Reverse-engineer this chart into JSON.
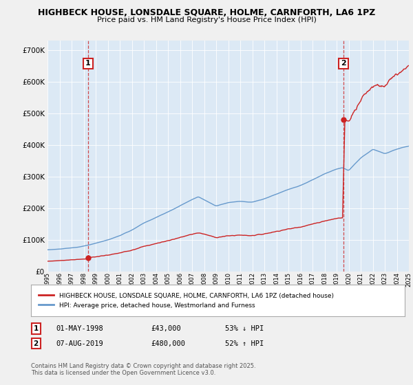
{
  "title": "HIGHBECK HOUSE, LONSDALE SQUARE, HOLME, CARNFORTH, LA6 1PZ",
  "subtitle": "Price paid vs. HM Land Registry's House Price Index (HPI)",
  "bg_color": "#f0f0f0",
  "plot_bg_color": "#dce9f5",
  "hpi_color": "#6699cc",
  "price_color": "#cc2222",
  "grid_color": "#ffffff",
  "sale1_year": 1998.37,
  "sale1_price": 43000,
  "sale2_year": 2019.58,
  "sale2_price": 480000,
  "x_start_year": 1995,
  "x_end_year": 2025,
  "y_max": 730000,
  "legend_line1": "HIGHBECK HOUSE, LONSDALE SQUARE, HOLME, CARNFORTH, LA6 1PZ (detached house)",
  "legend_line2": "HPI: Average price, detached house, Westmorland and Furness",
  "note1_num": "1",
  "note1_date": "01-MAY-1998",
  "note1_price": "£43,000",
  "note1_hpi": "53% ↓ HPI",
  "note2_num": "2",
  "note2_date": "07-AUG-2019",
  "note2_price": "£480,000",
  "note2_hpi": "52% ↑ HPI",
  "footer": "Contains HM Land Registry data © Crown copyright and database right 2025.\nThis data is licensed under the Open Government Licence v3.0."
}
